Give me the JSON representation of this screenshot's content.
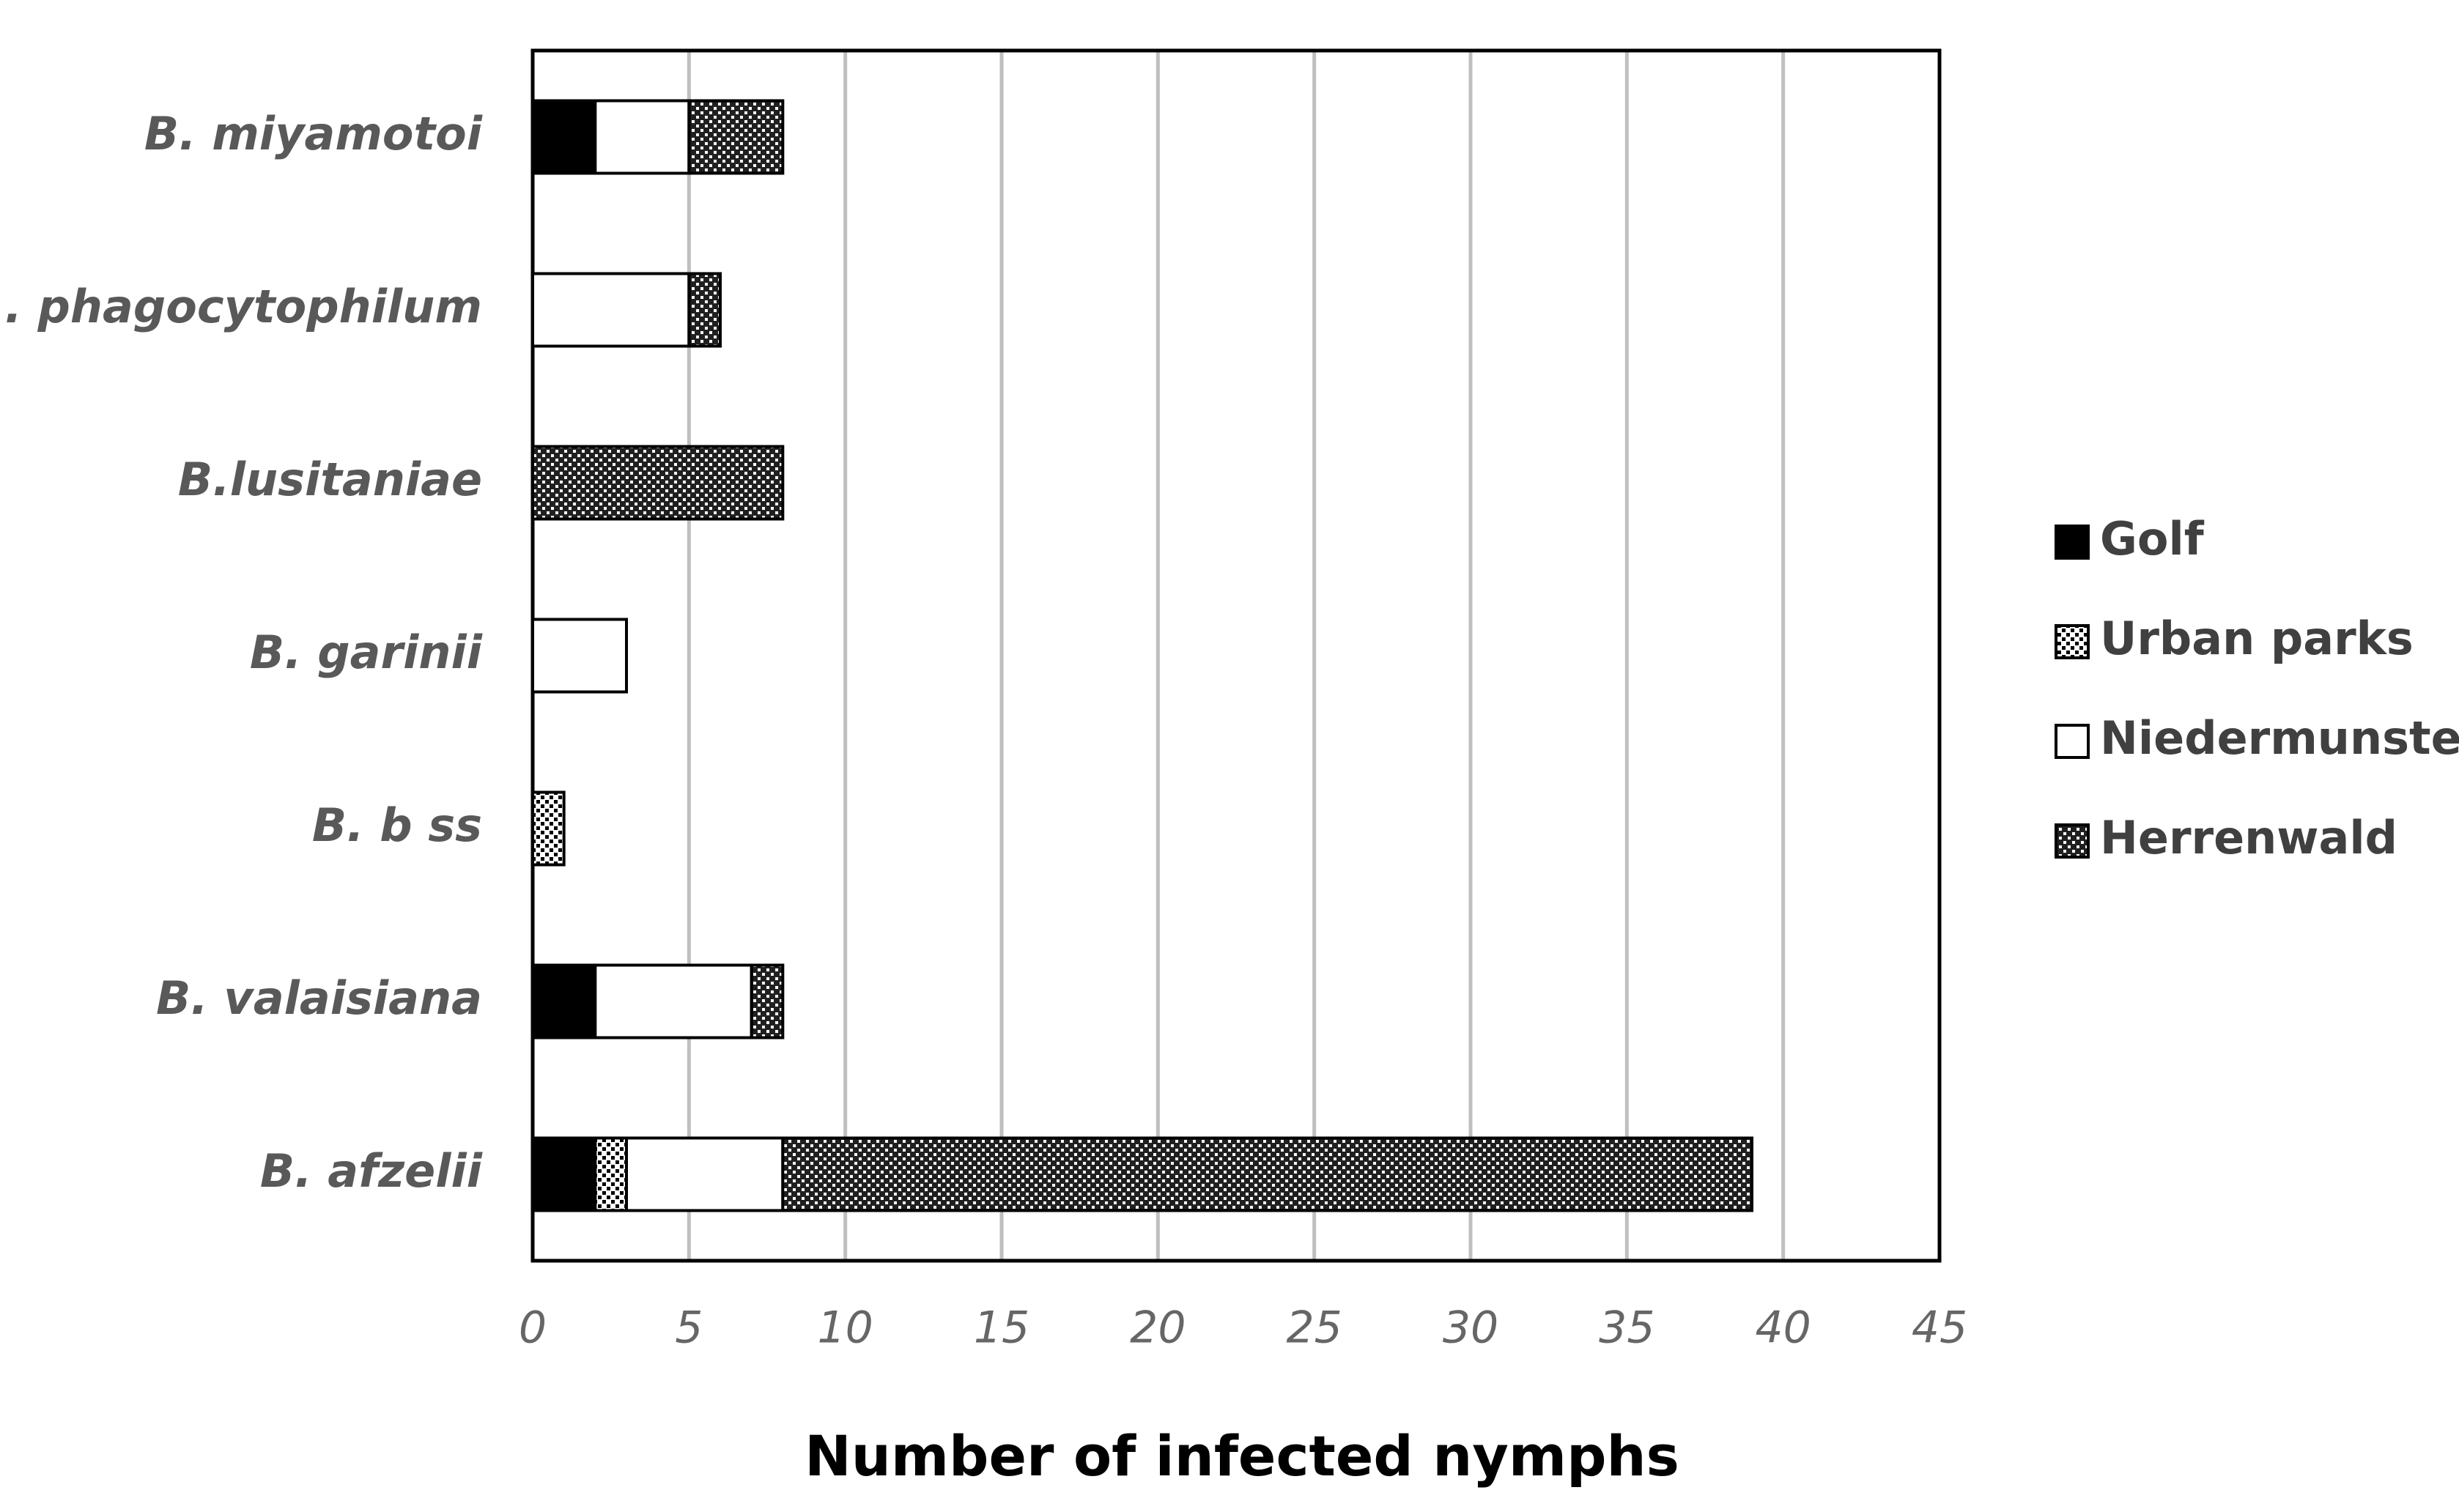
{
  "chart_data": {
    "type": "stacked-bar-horizontal",
    "x_label": "Number of infected nymphs",
    "categories": [
      "B. miyamotoi",
      "A. phagocytophilum",
      "B.lusitaniae",
      "B. garinii",
      "B. b ss",
      "B. valaisiana",
      "B. afzelii"
    ],
    "series": [
      {
        "name": "Golf",
        "color": "#000000",
        "values": [
          2,
          0,
          0,
          0,
          0,
          2,
          2
        ]
      },
      {
        "name": "Urban parks",
        "color": "#ffffff",
        "values": [
          0,
          0,
          0,
          0,
          1,
          0,
          1
        ]
      },
      {
        "name": "Niedermunster",
        "color": "#ffffff",
        "values": [
          3,
          5,
          0,
          3,
          0,
          5,
          5
        ]
      },
      {
        "name": "Herrenwald",
        "color": "#202020",
        "values": [
          3,
          1,
          8,
          0,
          0,
          1,
          31
        ]
      }
    ],
    "xlim": [
      0,
      45
    ],
    "xticks": [
      0,
      5,
      10,
      15,
      20,
      25,
      30,
      35,
      40,
      45
    ],
    "grid": true,
    "legend": "right"
  }
}
